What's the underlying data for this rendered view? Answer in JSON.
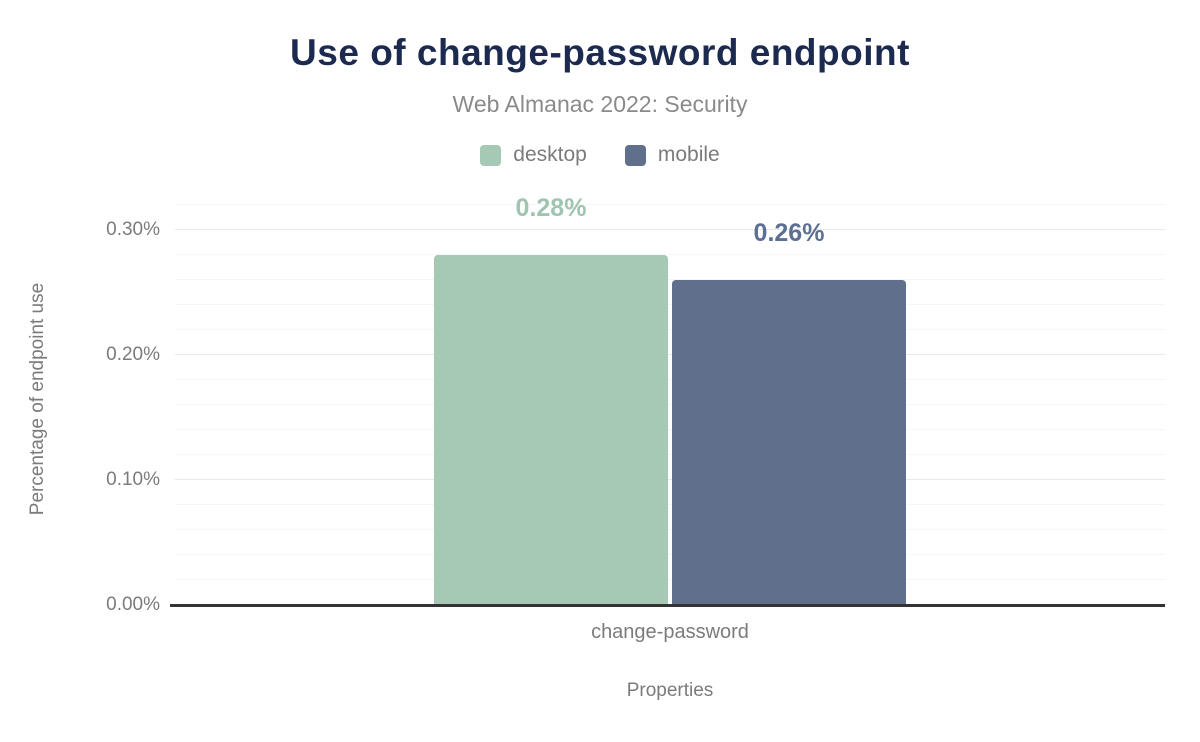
{
  "chart_data": {
    "type": "bar",
    "title": "Use of change-password endpoint",
    "subtitle": "Web Almanac 2022: Security",
    "categories": [
      "change-password"
    ],
    "series": [
      {
        "name": "desktop",
        "value": 0.28,
        "label": "0.28%",
        "color": "#a6c9b6",
        "label_color": "#9fc4af"
      },
      {
        "name": "mobile",
        "value": 0.26,
        "label": "0.26%",
        "color": "#60708c",
        "label_color": "#5d6f92"
      }
    ],
    "xlabel": "Properties",
    "ylabel": "Percentage of endpoint use",
    "unit": "%",
    "ylim": [
      0,
      0.332
    ],
    "y_ticks": [
      {
        "value": 0.0,
        "label": "0.00%"
      },
      {
        "value": 0.1,
        "label": "0.10%"
      },
      {
        "value": 0.2,
        "label": "0.20%"
      },
      {
        "value": 0.3,
        "label": "0.30%"
      }
    ],
    "minor_grid_step": 0.02,
    "grid": true,
    "legend_position": "top"
  },
  "colors": {
    "title_text": "#1b2a4e",
    "muted_text": "#7b7b7b",
    "axis_line": "#333333",
    "grid_major": "#e9e9e9",
    "grid_minor": "#f6f6f6",
    "background": "#ffffff"
  }
}
